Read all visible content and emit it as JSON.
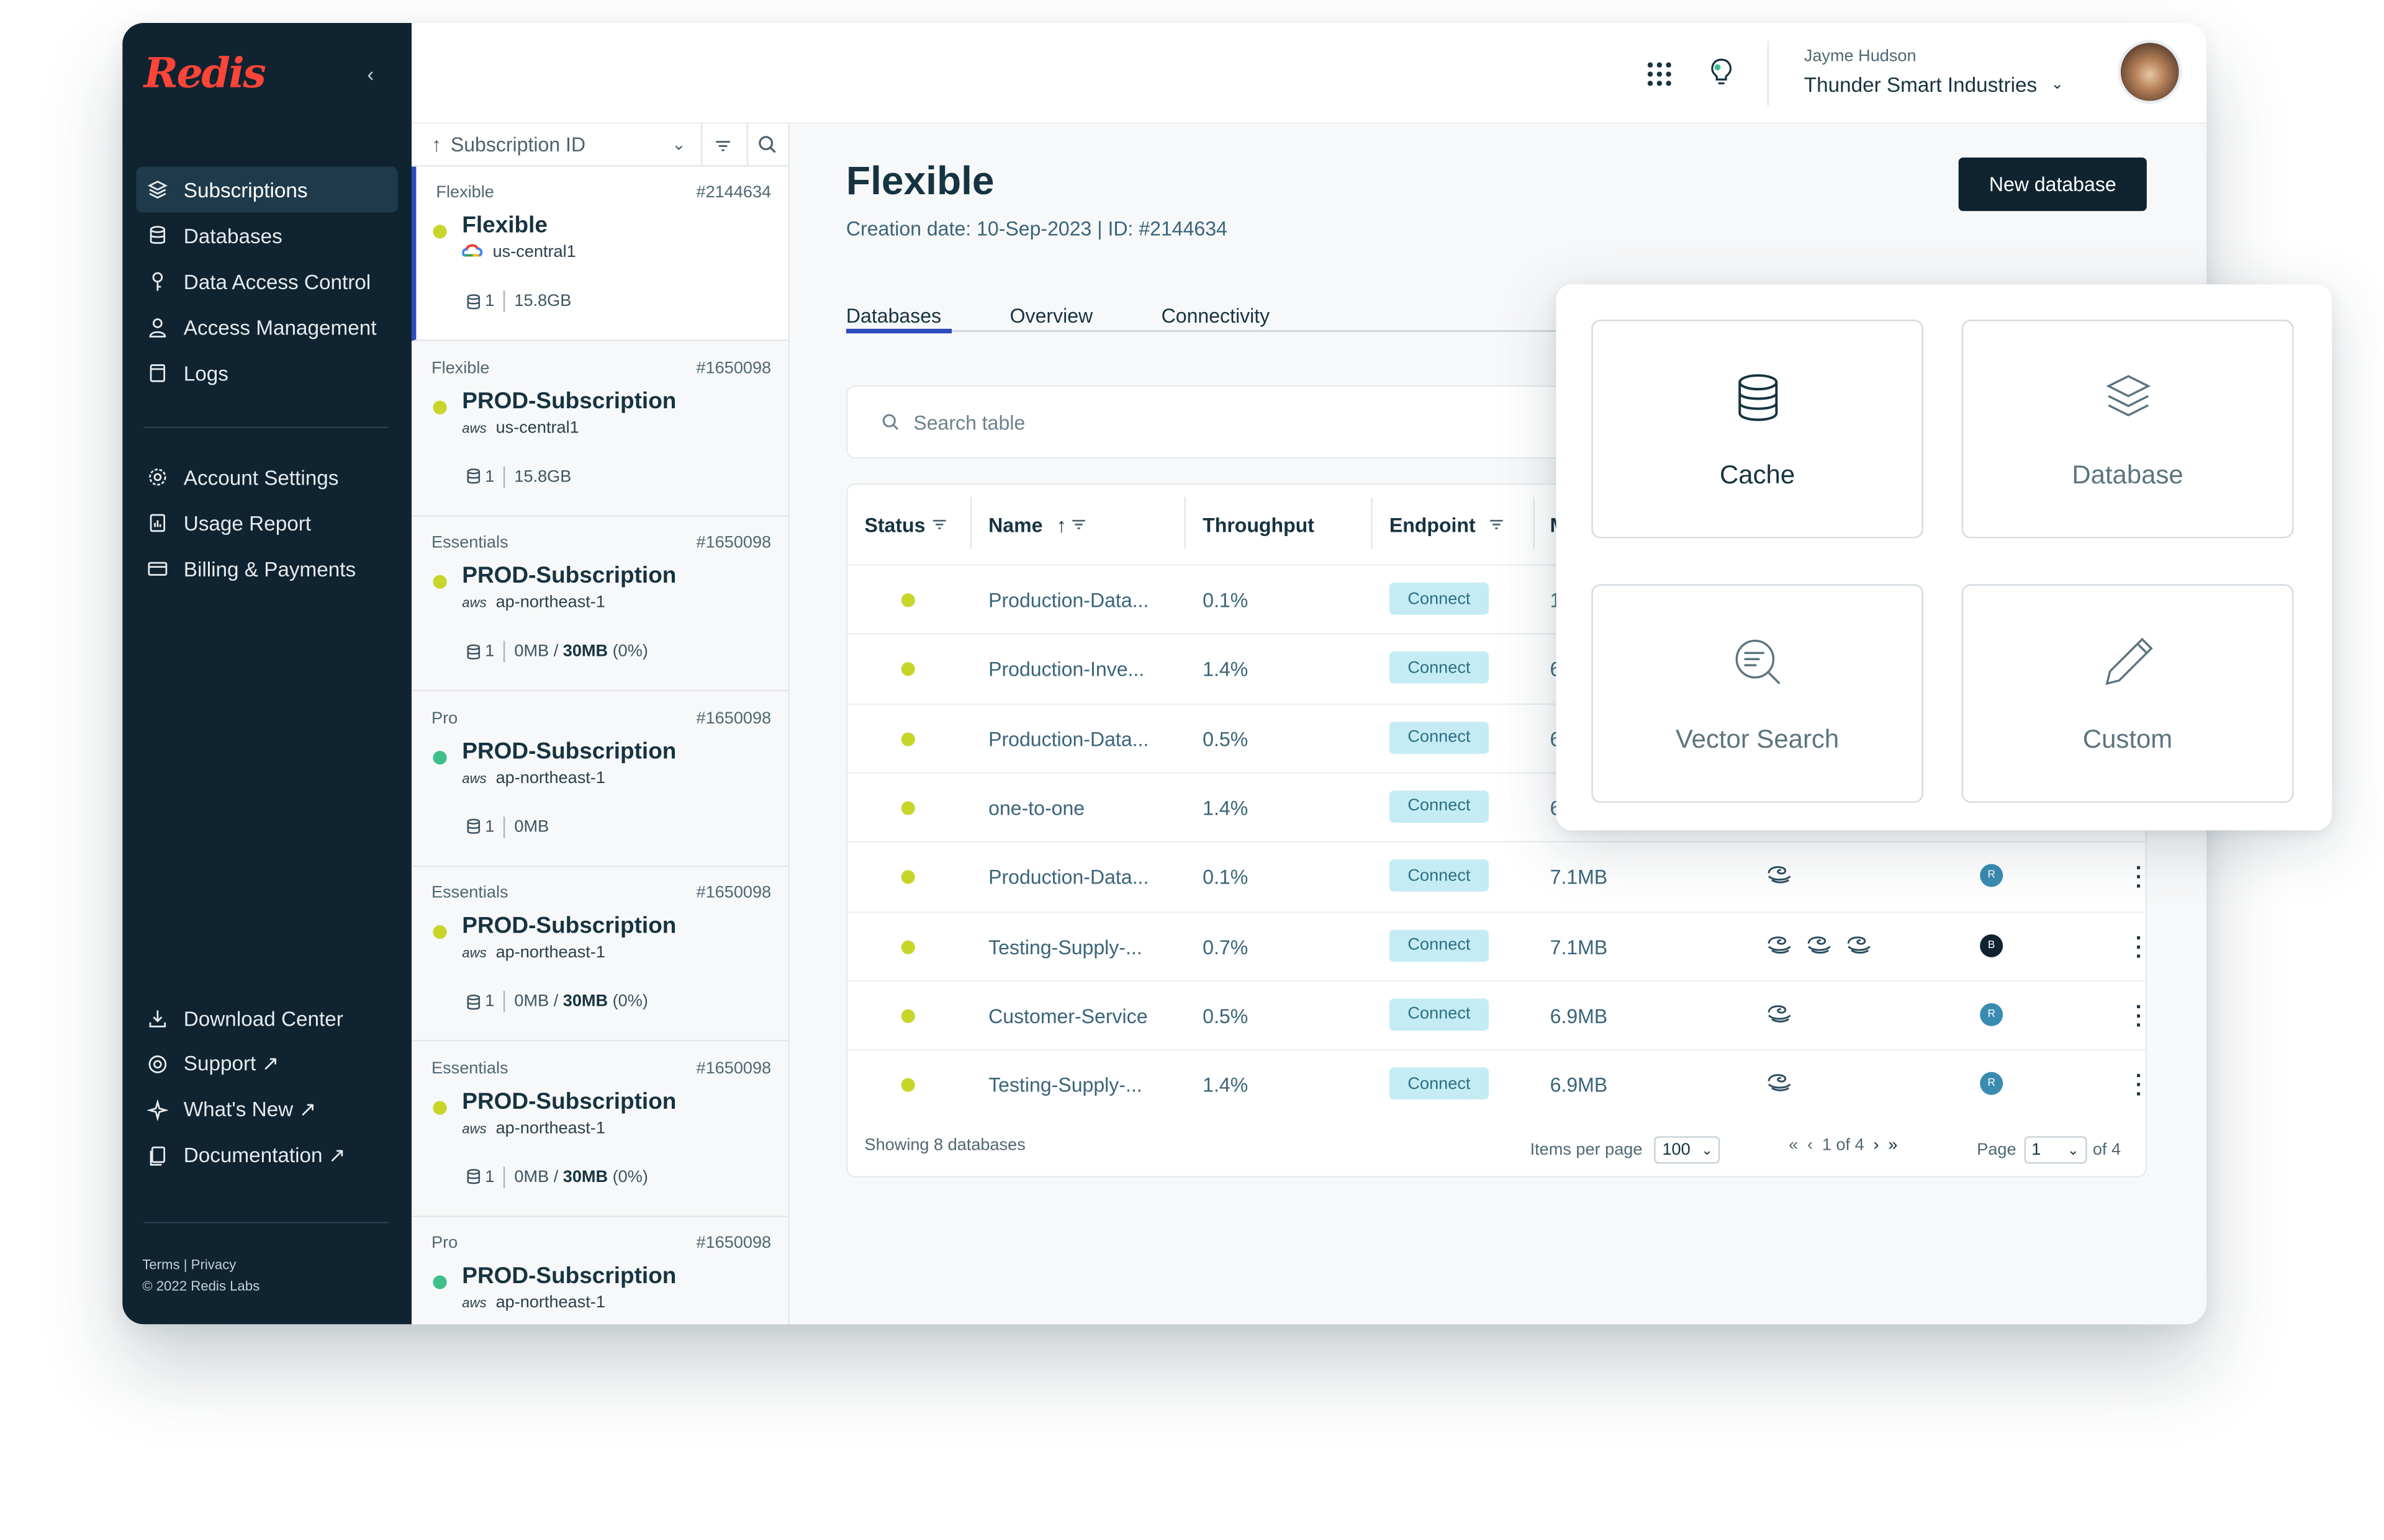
{
  "brand": {
    "logo": "Redis",
    "accent": "#ff4438"
  },
  "sidebar": {
    "items": [
      {
        "label": "Subscriptions",
        "icon": "layers-icon",
        "active": true
      },
      {
        "label": "Databases",
        "icon": "database-icon"
      },
      {
        "label": "Data Access Control",
        "icon": "key-icon"
      },
      {
        "label": "Access Management",
        "icon": "user-icon"
      },
      {
        "label": "Logs",
        "icon": "log-icon"
      }
    ],
    "settings": [
      {
        "label": "Account Settings",
        "icon": "gear-icon"
      },
      {
        "label": "Usage Report",
        "icon": "report-icon"
      },
      {
        "label": "Billing & Payments",
        "icon": "card-icon"
      }
    ],
    "bottom": [
      {
        "label": "Download Center",
        "icon": "download-icon"
      },
      {
        "label": "Support ↗",
        "icon": "lifebuoy-icon"
      },
      {
        "label": "What's New ↗",
        "icon": "sparkle-icon"
      },
      {
        "label": "Documentation ↗",
        "icon": "docs-icon"
      }
    ],
    "footer_links": "Terms | Privacy",
    "copyright": "© 2022 Redis Labs"
  },
  "topbar": {
    "user_name": "Jayme Hudson",
    "org_name": "Thunder Smart Industries"
  },
  "sublist": {
    "sort_label": "Subscription ID",
    "cards": [
      {
        "type": "Flexible",
        "id": "#2144634",
        "name": "Flexible",
        "provider": "gcp",
        "region": "us-central1",
        "db_count": "1",
        "size": "15.8GB",
        "limit": "",
        "status": "yellow",
        "selected": true
      },
      {
        "type": "Flexible",
        "id": "#1650098",
        "name": "PROD-Subscription",
        "provider": "aws",
        "region": "us-central1",
        "db_count": "1",
        "size": "15.8GB",
        "limit": "",
        "status": "yellow"
      },
      {
        "type": "Essentials",
        "id": "#1650098",
        "name": "PROD-Subscription",
        "provider": "aws",
        "region": "ap-northeast-1",
        "db_count": "1",
        "size": "0MB / ",
        "limit": "30MB",
        "pct": " (0%)",
        "status": "yellow"
      },
      {
        "type": "Pro",
        "id": "#1650098",
        "name": "PROD-Subscription",
        "provider": "aws",
        "region": "ap-northeast-1",
        "db_count": "1",
        "size": "0MB",
        "limit": "",
        "status": "green"
      },
      {
        "type": "Essentials",
        "id": "#1650098",
        "name": "PROD-Subscription",
        "provider": "aws",
        "region": "ap-northeast-1",
        "db_count": "1",
        "size": "0MB / ",
        "limit": "30MB",
        "pct": " (0%)",
        "status": "yellow"
      },
      {
        "type": "Essentials",
        "id": "#1650098",
        "name": "PROD-Subscription",
        "provider": "aws",
        "region": "ap-northeast-1",
        "db_count": "1",
        "size": "0MB / ",
        "limit": "30MB",
        "pct": " (0%)",
        "status": "yellow"
      },
      {
        "type": "Pro",
        "id": "#1650098",
        "name": "PROD-Subscription",
        "provider": "aws",
        "region": "ap-northeast-1",
        "db_count": "",
        "size": "",
        "limit": "",
        "status": "green"
      }
    ]
  },
  "main": {
    "title": "Flexible",
    "subtitle": "Creation date: 10-Sep-2023 | ID: #2144634",
    "new_button": "New database",
    "tabs": [
      "Databases",
      "Overview",
      "Connectivity"
    ],
    "search_placeholder": "Search table",
    "columns": [
      "Status",
      "Name",
      "Throughput",
      "Endpoint",
      "M"
    ],
    "rows": [
      {
        "name": "Production-Data...",
        "throughput": "0.1%",
        "endpoint": "Connect",
        "memory": "1",
        "modules": 0,
        "avatar": ""
      },
      {
        "name": "Production-Inve...",
        "throughput": "1.4%",
        "endpoint": "Connect",
        "memory": "6",
        "modules": 0,
        "avatar": ""
      },
      {
        "name": "Production-Data...",
        "throughput": "0.5%",
        "endpoint": "Connect",
        "memory": "6",
        "modules": 0,
        "avatar": ""
      },
      {
        "name": "one-to-one",
        "throughput": "1.4%",
        "endpoint": "Connect",
        "memory": "6",
        "modules": 0,
        "avatar": ""
      },
      {
        "name": "Production-Data...",
        "throughput": "0.1%",
        "endpoint": "Connect",
        "memory": "7.1MB",
        "modules": 1,
        "avatar": "R"
      },
      {
        "name": "Testing-Supply-...",
        "throughput": "0.7%",
        "endpoint": "Connect",
        "memory": "7.1MB",
        "modules": 3,
        "avatar": "B"
      },
      {
        "name": "Customer-Service",
        "throughput": "0.5%",
        "endpoint": "Connect",
        "memory": "6.9MB",
        "modules": 1,
        "avatar": "R"
      },
      {
        "name": "Testing-Supply-...",
        "throughput": "1.4%",
        "endpoint": "Connect",
        "memory": "6.9MB",
        "modules": 1,
        "avatar": "R"
      }
    ],
    "footer": {
      "showing": "Showing 8 databases",
      "items_per_page_label": "Items per page",
      "items_per_page": "100",
      "pager": "1 of 4",
      "page_label": "Page",
      "page_value": "1",
      "page_of": "of 4"
    }
  },
  "popup": {
    "options": [
      {
        "label": "Cache",
        "icon": "database-stack-icon"
      },
      {
        "label": "Database",
        "icon": "layers-icon"
      },
      {
        "label": "Vector Search",
        "icon": "vector-search-icon"
      },
      {
        "label": "Custom",
        "icon": "pencil-icon"
      }
    ]
  },
  "colors": {
    "sidebar_bg": "#0f2330",
    "active_tab": "#2d4bbe",
    "status_yellow": "#c7d62a",
    "status_green": "#3fbf8a",
    "connect_bg": "#c5ecf4"
  }
}
